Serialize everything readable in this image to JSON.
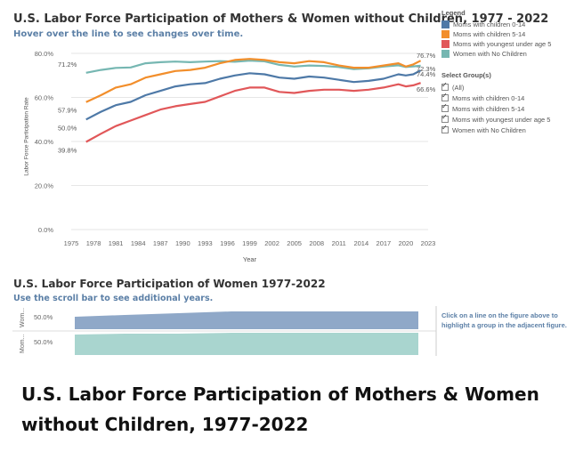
{
  "top_chart": {
    "title": "U.S. Labor Force Participation of Mothers & Women without Children, 1977 - 2022",
    "subtitle": "Hover over the line to see changes over time.",
    "ylabel": "Labor Force Participation Rate",
    "xlabel": "Year"
  },
  "legend": {
    "title": "Legend",
    "items": [
      {
        "label": "Moms with children 0-14",
        "color": "#4e79a7"
      },
      {
        "label": "Moms with children 5-14",
        "color": "#f28e2b"
      },
      {
        "label": "Moms with youngest under age 5",
        "color": "#e15759"
      },
      {
        "label": "Women with No Children",
        "color": "#76b7b2"
      }
    ]
  },
  "select_groups": {
    "title": "Select Group(s)",
    "items": [
      "(All)",
      "Moms with children 0-14",
      "Moms with children 5-14",
      "Moms with youngest under age 5",
      "Women with No Children"
    ]
  },
  "bottom_chart": {
    "title": "U.S. Labor Force Participation of Women 1977-2022",
    "subtitle": "Use the scroll bar to see additional years.",
    "row_labels": [
      "Wom... Mom..."
    ],
    "row_label_top": "Wom...",
    "row_label_bottom": "Mom...",
    "tick_label": "50.0%",
    "note": "Click on a line on the figure above to highlight a group in the adjacent figure."
  },
  "caption": "U.S. Labor Force Participation of Mothers & Women without Children, 1977-2022",
  "chart_data": {
    "type": "line",
    "title": "U.S. Labor Force Participation of Mothers & Women without Children, 1977 - 2022",
    "xlabel": "Year",
    "ylabel": "Labor Force Participation Rate",
    "ylim": [
      0,
      80
    ],
    "yticks": [
      "0.0%",
      "20.0%",
      "40.0%",
      "60.0%",
      "80.0%"
    ],
    "ytick_values": [
      0,
      20,
      40,
      60,
      80
    ],
    "xlim": [
      1975,
      2023
    ],
    "xticks": [
      1975,
      1978,
      1981,
      1984,
      1987,
      1990,
      1993,
      1996,
      1999,
      2002,
      2005,
      2008,
      2011,
      2014,
      2017,
      2020,
      2023
    ],
    "grid": true,
    "legend_position": "right",
    "x": [
      1977,
      1979,
      1981,
      1983,
      1985,
      1987,
      1989,
      1991,
      1993,
      1995,
      1997,
      1999,
      2001,
      2003,
      2005,
      2007,
      2009,
      2011,
      2013,
      2015,
      2017,
      2019,
      2020,
      2021,
      2022
    ],
    "series": [
      {
        "name": "Women with No Children",
        "color": "#76b7b2",
        "start_label": "71.2%",
        "end_label": "74.4%",
        "values": [
          71.2,
          72.5,
          73.4,
          73.6,
          75.5,
          76.0,
          76.3,
          76.0,
          76.3,
          76.5,
          76.2,
          76.7,
          76.4,
          74.8,
          74.0,
          74.5,
          74.3,
          73.8,
          72.9,
          73.2,
          74.0,
          74.6,
          73.8,
          74.1,
          74.4
        ]
      },
      {
        "name": "Moms with children 5-14",
        "color": "#f28e2b",
        "start_label": "57.9%",
        "end_label": "76.7%",
        "values": [
          57.9,
          61.0,
          64.5,
          66.0,
          69.0,
          70.5,
          72.0,
          72.5,
          73.5,
          75.5,
          77.0,
          77.5,
          77.0,
          76.0,
          75.5,
          76.5,
          76.0,
          74.5,
          73.5,
          73.5,
          74.5,
          75.5,
          74.0,
          75.0,
          76.7
        ]
      },
      {
        "name": "Moms with children 0-14",
        "color": "#4e79a7",
        "start_label": "50.0%",
        "end_label": "72.3%",
        "values": [
          50.0,
          53.5,
          56.5,
          58.0,
          61.0,
          63.0,
          65.0,
          66.0,
          66.5,
          68.5,
          70.0,
          71.0,
          70.5,
          69.0,
          68.5,
          69.5,
          69.0,
          68.0,
          67.0,
          67.5,
          68.5,
          70.5,
          70.0,
          70.5,
          72.3
        ]
      },
      {
        "name": "Moms with youngest under age 5",
        "color": "#e15759",
        "start_label": "39.8%",
        "end_label": "66.6%",
        "values": [
          39.8,
          43.5,
          47.0,
          49.5,
          52.0,
          54.5,
          56.0,
          57.0,
          58.0,
          60.5,
          63.0,
          64.5,
          64.5,
          62.5,
          62.0,
          63.0,
          63.5,
          63.5,
          63.0,
          63.5,
          64.5,
          66.0,
          65.0,
          65.5,
          66.6
        ]
      }
    ]
  }
}
